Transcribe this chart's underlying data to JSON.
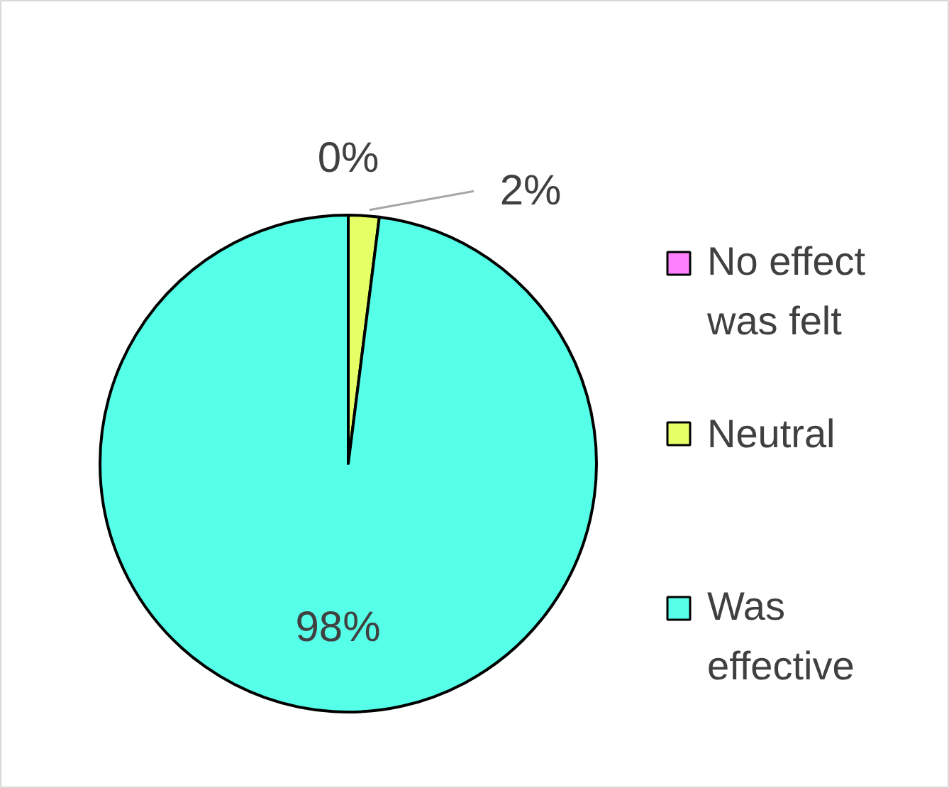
{
  "chart_data": {
    "type": "pie",
    "categories": [
      "No effect was felt",
      "Neutral",
      "Was effective"
    ],
    "values": [
      0,
      2,
      98
    ],
    "colors": [
      "#ff80ff",
      "#e6ff66",
      "#55ffe8"
    ],
    "value_labels": [
      "0%",
      "2%",
      "98%"
    ],
    "legend": "right"
  }
}
